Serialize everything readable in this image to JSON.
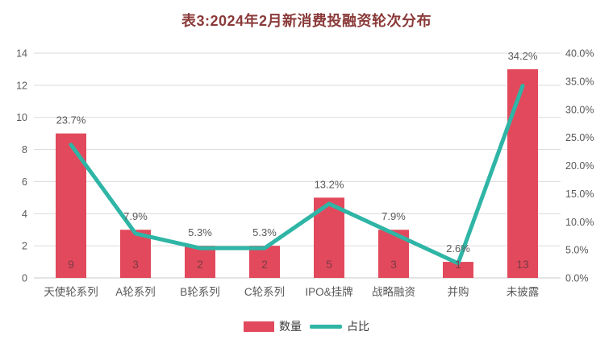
{
  "title": "表3:2024年2月新消费投融资轮次分布",
  "chart_data": {
    "type": "bar",
    "subtype": "combo-bar-line-dual-axis",
    "categories": [
      "天使轮系列",
      "A轮系列",
      "B轮系列",
      "C轮系列",
      "IPO&挂牌",
      "战略融资",
      "并购",
      "未披露"
    ],
    "series": [
      {
        "name": "数量",
        "type": "bar",
        "axis": "left",
        "values": [
          9,
          3,
          2,
          2,
          5,
          3,
          1,
          13
        ]
      },
      {
        "name": "占比",
        "type": "line",
        "axis": "right",
        "values": [
          23.7,
          7.9,
          5.3,
          5.3,
          13.2,
          7.9,
          2.6,
          34.2
        ],
        "labels": [
          "23.7%",
          "7.9%",
          "5.3%",
          "5.3%",
          "13.2%",
          "7.9%",
          "2.6%",
          "34.2%"
        ]
      }
    ],
    "left_axis": {
      "min": 0,
      "max": 14,
      "ticks": [
        "0",
        "2",
        "4",
        "6",
        "8",
        "10",
        "12",
        "14"
      ]
    },
    "right_axis": {
      "min": 0,
      "max": 40,
      "ticks": [
        "0.0%",
        "5.0%",
        "10.0%",
        "15.0%",
        "20.0%",
        "25.0%",
        "30.0%",
        "35.0%",
        "40.0%"
      ]
    },
    "legend": [
      "数量",
      "占比"
    ],
    "legend_position": "bottom-center",
    "grid": "horizontal-on",
    "colors": {
      "bar": "#e2495c",
      "line": "#2fb5a6",
      "title": "#8b3a3a",
      "count_label": "#7d3b45",
      "pct_label": "#595959",
      "axis_text": "#595959",
      "grid": "#dadada",
      "axis_line": "#c9c9c9"
    }
  }
}
